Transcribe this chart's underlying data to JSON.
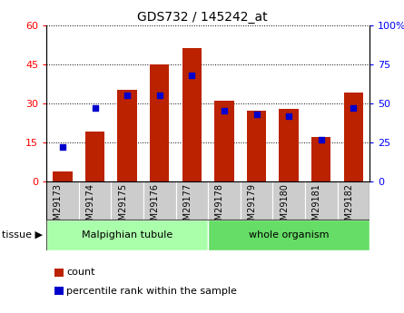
{
  "title": "GDS732 / 145242_at",
  "samples": [
    "GSM29173",
    "GSM29174",
    "GSM29175",
    "GSM29176",
    "GSM29177",
    "GSM29178",
    "GSM29179",
    "GSM29180",
    "GSM29181",
    "GSM29182"
  ],
  "counts": [
    4,
    19,
    35,
    45,
    51,
    31,
    27,
    28,
    17,
    34
  ],
  "percentile_ranks": [
    22,
    47,
    55,
    55,
    68,
    45,
    43,
    42,
    27,
    47
  ],
  "tissue_groups": [
    {
      "label": "Malpighian tubule",
      "start": 0,
      "end": 5,
      "color": "#aaffaa"
    },
    {
      "label": "whole organism",
      "start": 5,
      "end": 10,
      "color": "#66dd66"
    }
  ],
  "bar_color": "#bb2200",
  "dot_color": "#0000cc",
  "left_ylim": [
    0,
    60
  ],
  "left_yticks": [
    0,
    15,
    30,
    45,
    60
  ],
  "right_ylim": [
    0,
    100
  ],
  "right_yticks": [
    0,
    25,
    50,
    75,
    100
  ],
  "tick_bg": "#cccccc",
  "tissue_arrow_label": "tissue ▶",
  "legend_count_label": "count",
  "legend_pct_label": "percentile rank within the sample",
  "right_tick_labels": [
    "0",
    "25",
    "50",
    "75",
    "100%"
  ]
}
